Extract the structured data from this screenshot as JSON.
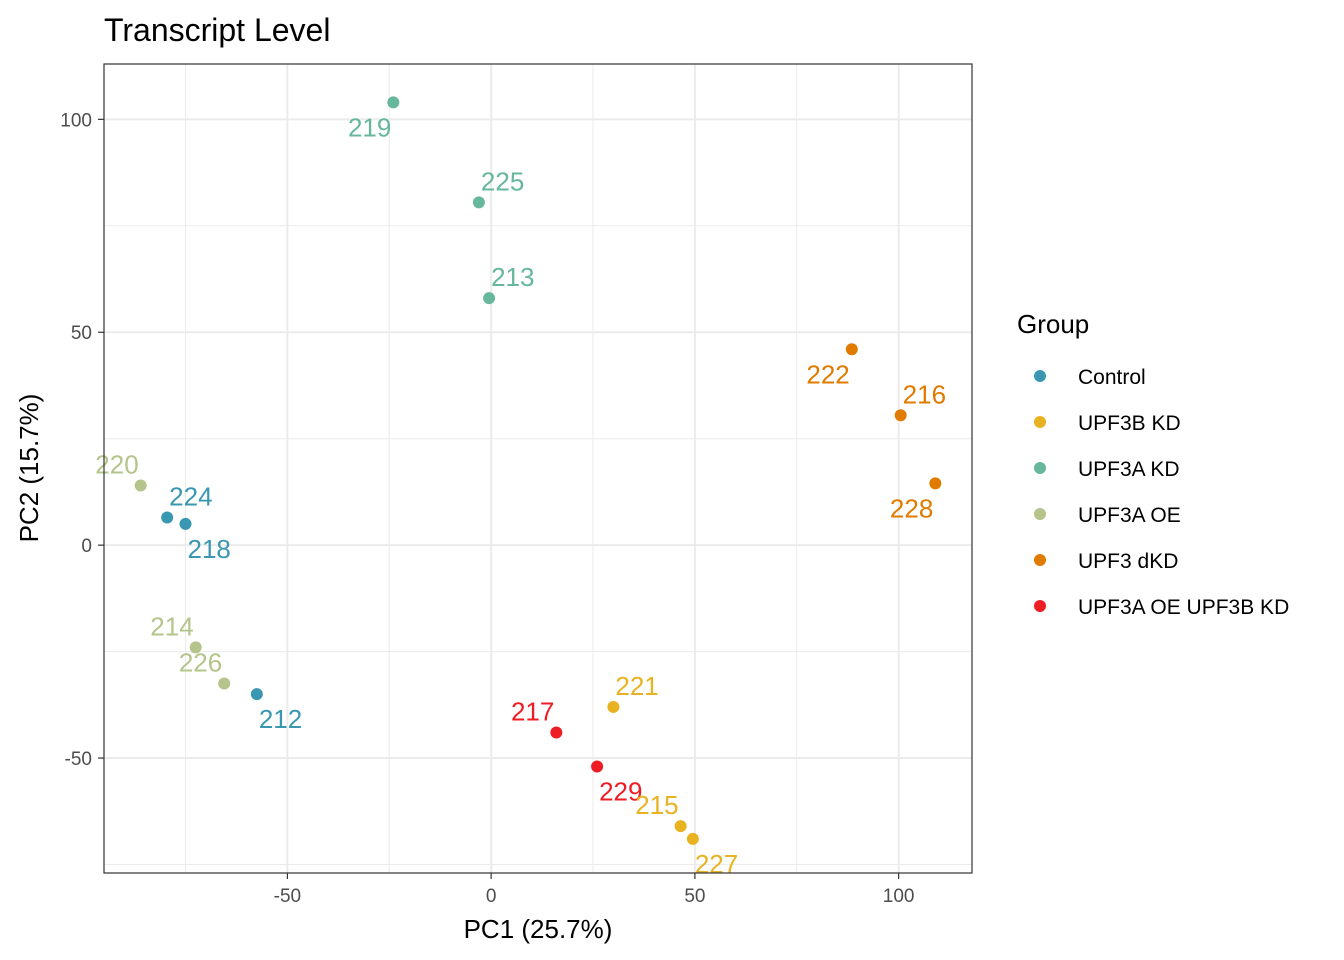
{
  "chart_data": {
    "type": "scatter",
    "title": "Transcript Level",
    "xlabel": "PC1 (25.7%)",
    "ylabel": "PC2 (15.7%)",
    "xlim": [
      -95,
      118
    ],
    "ylim": [
      -77,
      113
    ],
    "x_ticks": [
      -50,
      0,
      50,
      100
    ],
    "y_ticks": [
      -50,
      0,
      50,
      100
    ],
    "x_tick_labels": [
      "-50",
      "0",
      "50",
      "100"
    ],
    "y_tick_labels": [
      "-50",
      "0",
      "50",
      "100"
    ],
    "grid": true,
    "legend": {
      "title": "Group",
      "position": "right",
      "entries": [
        {
          "name": "Control",
          "color": "#3a97b1"
        },
        {
          "name": "UPF3B KD",
          "color": "#e8b220"
        },
        {
          "name": "UPF3A KD",
          "color": "#66b79b"
        },
        {
          "name": "UPF3A OE",
          "color": "#b4c48a"
        },
        {
          "name": "UPF3 dKD",
          "color": "#e07b00"
        },
        {
          "name": "UPF3A OE UPF3B KD",
          "color": "#ee1c25"
        }
      ]
    },
    "points": [
      {
        "label": "219",
        "group": "UPF3A KD",
        "x": -24,
        "y": 104,
        "label_pos": "below-left"
      },
      {
        "label": "225",
        "group": "UPF3A KD",
        "x": -3,
        "y": 80.5,
        "label_pos": "above-right"
      },
      {
        "label": "213",
        "group": "UPF3A KD",
        "x": -0.5,
        "y": 58,
        "label_pos": "above-right"
      },
      {
        "label": "222",
        "group": "UPF3 dKD",
        "x": 88.5,
        "y": 46,
        "label_pos": "below-left"
      },
      {
        "label": "216",
        "group": "UPF3 dKD",
        "x": 100.5,
        "y": 30.5,
        "label_pos": "above-right"
      },
      {
        "label": "228",
        "group": "UPF3 dKD",
        "x": 109,
        "y": 14.5,
        "label_pos": "below-left"
      },
      {
        "label": "220",
        "group": "UPF3A OE",
        "x": -86,
        "y": 14,
        "label_pos": "above-left"
      },
      {
        "label": "224",
        "group": "Control",
        "x": -79.5,
        "y": 6.5,
        "label_pos": "above-right"
      },
      {
        "label": "218",
        "group": "Control",
        "x": -75,
        "y": 5,
        "label_pos": "below-right"
      },
      {
        "label": "214",
        "group": "UPF3A OE",
        "x": -72.5,
        "y": -24,
        "label_pos": "above-left"
      },
      {
        "label": "226",
        "group": "UPF3A OE",
        "x": -65.5,
        "y": -32.5,
        "label_pos": "above-left"
      },
      {
        "label": "212",
        "group": "Control",
        "x": -57.5,
        "y": -35,
        "label_pos": "below-right"
      },
      {
        "label": "221",
        "group": "UPF3B KD",
        "x": 30,
        "y": -38,
        "label_pos": "above-right"
      },
      {
        "label": "217",
        "group": "UPF3A OE UPF3B KD",
        "x": 16,
        "y": -44,
        "label_pos": "above-left"
      },
      {
        "label": "229",
        "group": "UPF3A OE UPF3B KD",
        "x": 26,
        "y": -52,
        "label_pos": "below-right"
      },
      {
        "label": "215",
        "group": "UPF3B KD",
        "x": 46.5,
        "y": -66,
        "label_pos": "above-left"
      },
      {
        "label": "227",
        "group": "UPF3B KD",
        "x": 49.5,
        "y": -69,
        "label_pos": "below-right"
      }
    ]
  }
}
